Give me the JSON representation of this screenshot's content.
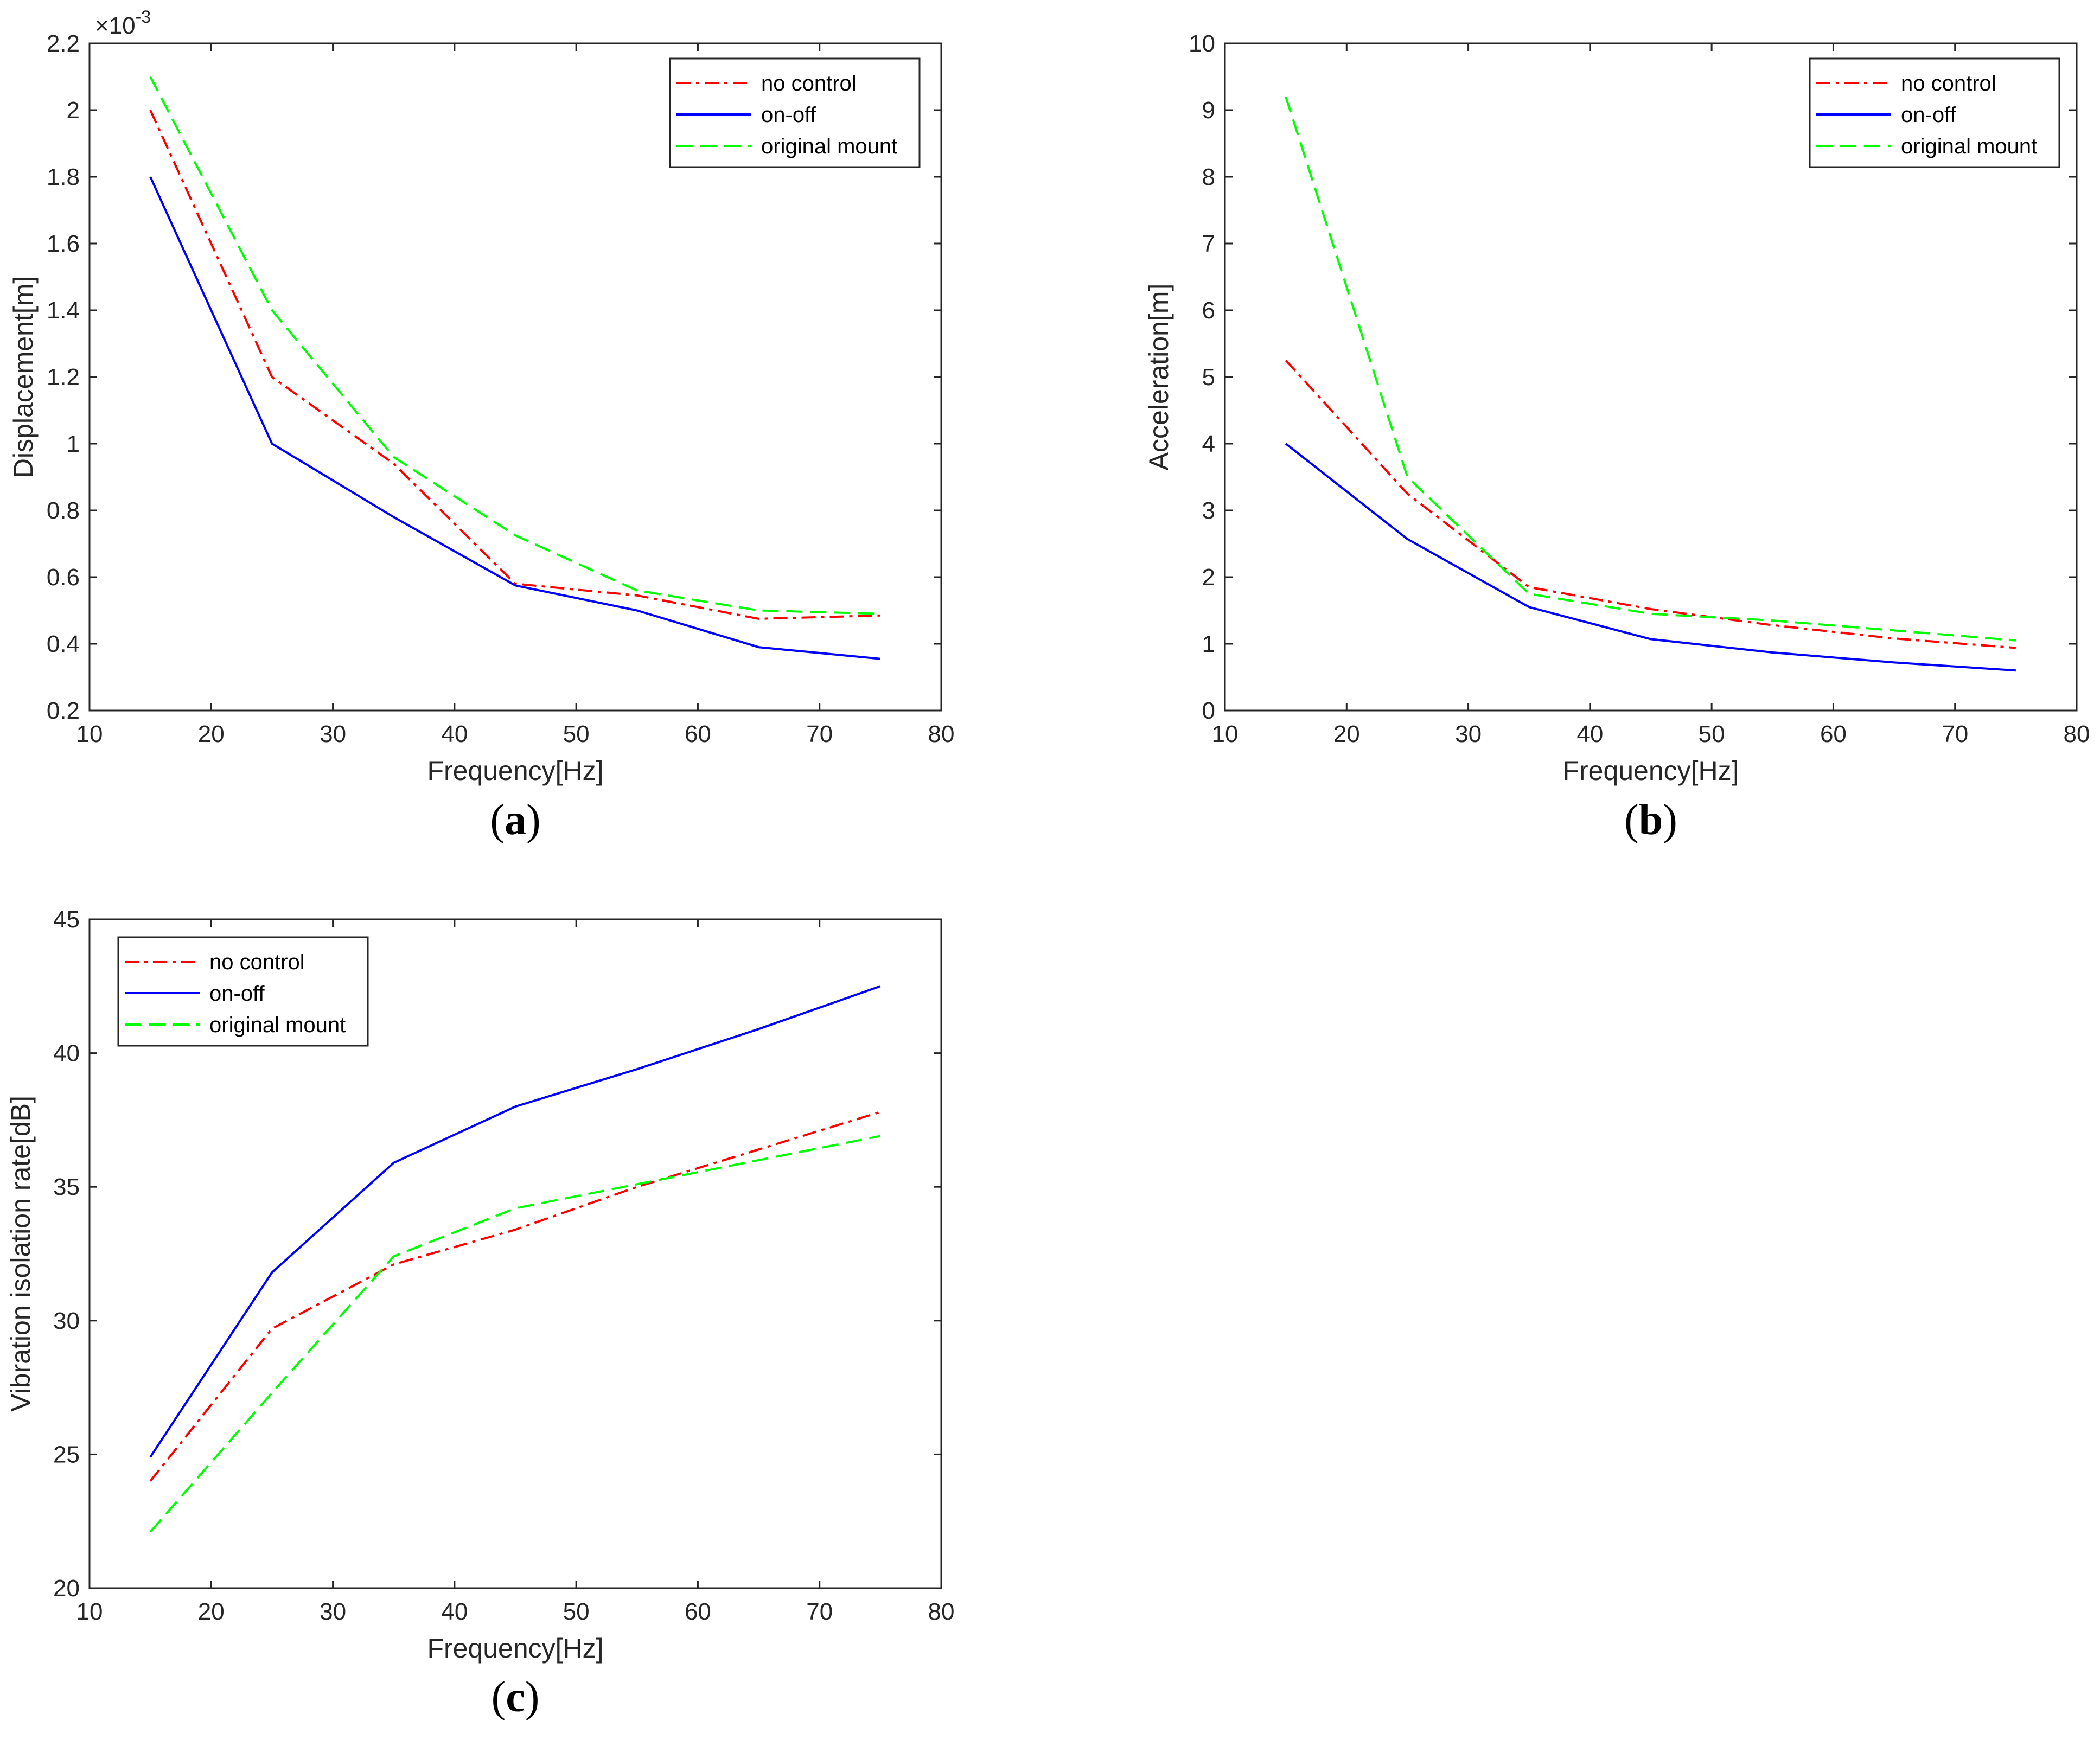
{
  "chart_data": [
    {
      "id": "a",
      "type": "line",
      "panel_label": "a",
      "title": "",
      "xlabel": "Frequency[Hz]",
      "ylabel": "Displacement[m]",
      "y_scale_note": "×10",
      "y_scale_exponent": "-3",
      "xlim": [
        10,
        80
      ],
      "ylim": [
        0.2,
        2.2
      ],
      "xticks": [
        10,
        20,
        30,
        40,
        50,
        60,
        70,
        80
      ],
      "yticks": [
        0.2,
        0.4,
        0.6,
        0.8,
        1,
        1.2,
        1.4,
        1.6,
        1.8,
        2,
        2.2
      ],
      "x": [
        15,
        25,
        35,
        45,
        55,
        65,
        75
      ],
      "legend_position": "top-right",
      "series": [
        {
          "name": "no control",
          "color": "#ff0000",
          "style": "dash-dot",
          "values": [
            2.0,
            1.2,
            0.94,
            0.58,
            0.545,
            0.475,
            0.485
          ]
        },
        {
          "name": "on-off",
          "color": "#0000ff",
          "style": "solid",
          "values": [
            1.8,
            1.0,
            0.78,
            0.575,
            0.5,
            0.39,
            0.355
          ]
        },
        {
          "name": "original mount",
          "color": "#00ff00",
          "style": "dashed",
          "values": [
            2.1,
            1.4,
            0.96,
            0.725,
            0.56,
            0.5,
            0.49
          ]
        }
      ]
    },
    {
      "id": "b",
      "type": "line",
      "panel_label": "b",
      "title": "",
      "xlabel": "Frequency[Hz]",
      "ylabel": "Acceleration[m]",
      "xlim": [
        10,
        80
      ],
      "ylim": [
        0,
        10
      ],
      "xticks": [
        10,
        20,
        30,
        40,
        50,
        60,
        70,
        80
      ],
      "yticks": [
        0,
        1,
        2,
        3,
        4,
        5,
        6,
        7,
        8,
        9,
        10
      ],
      "x": [
        15,
        25,
        35,
        45,
        55,
        65,
        75
      ],
      "legend_position": "top-right",
      "series": [
        {
          "name": "no control",
          "color": "#ff0000",
          "style": "dash-dot",
          "values": [
            5.25,
            3.25,
            1.85,
            1.52,
            1.28,
            1.08,
            0.94
          ]
        },
        {
          "name": "on-off",
          "color": "#0000ff",
          "style": "solid",
          "values": [
            4.0,
            2.57,
            1.55,
            1.07,
            0.87,
            0.72,
            0.6
          ]
        },
        {
          "name": "original mount",
          "color": "#00ff00",
          "style": "dashed",
          "values": [
            9.2,
            3.5,
            1.75,
            1.45,
            1.35,
            1.2,
            1.05
          ]
        }
      ]
    },
    {
      "id": "c",
      "type": "line",
      "panel_label": "c",
      "title": "",
      "xlabel": "Frequency[Hz]",
      "ylabel": "Vibration isolation rate[dB]",
      "xlim": [
        10,
        80
      ],
      "ylim": [
        20,
        45
      ],
      "xticks": [
        10,
        20,
        30,
        40,
        50,
        60,
        70,
        80
      ],
      "yticks": [
        20,
        25,
        30,
        35,
        40,
        45
      ],
      "x": [
        15,
        25,
        35,
        45,
        55,
        65,
        75
      ],
      "legend_position": "top-left",
      "series": [
        {
          "name": "no control",
          "color": "#ff0000",
          "style": "dash-dot",
          "values": [
            24.0,
            29.7,
            32.1,
            33.4,
            35.0,
            36.4,
            37.8
          ]
        },
        {
          "name": "on-off",
          "color": "#0000ff",
          "style": "solid",
          "values": [
            24.9,
            31.8,
            35.9,
            38.0,
            39.4,
            40.9,
            42.5
          ]
        },
        {
          "name": "original mount",
          "color": "#00ff00",
          "style": "dashed",
          "values": [
            22.1,
            27.3,
            32.4,
            34.2,
            35.1,
            36.0,
            36.9
          ]
        }
      ]
    }
  ]
}
